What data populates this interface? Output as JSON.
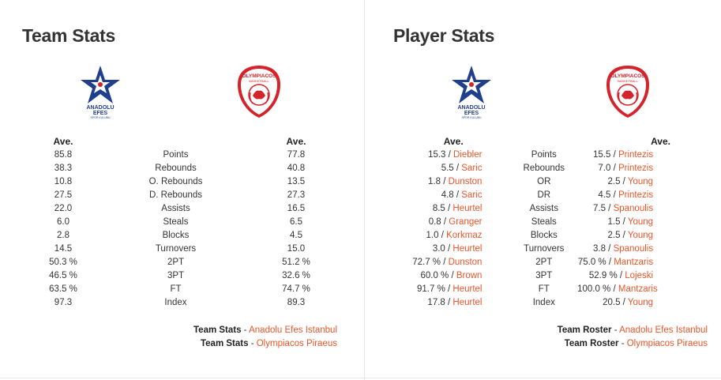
{
  "team_stats": {
    "title": "Team Stats",
    "home_logo": "anadolu-efes-logo",
    "away_logo": "olympiacos-logo",
    "logo_text": {
      "efes_line1": "ANADOLU",
      "efes_line2": "EFES",
      "efes_line3": "SPOR KULUBU",
      "oly_line1": "OLYMPIACOS",
      "oly_line2": "BASKETBALL"
    },
    "col_home": "Ave.",
    "col_away": "Ave.",
    "rows": [
      {
        "home": "85.8",
        "stat": "Points",
        "away": "77.8"
      },
      {
        "home": "38.3",
        "stat": "Rebounds",
        "away": "40.8"
      },
      {
        "home": "10.8",
        "stat": "O. Rebounds",
        "away": "13.5"
      },
      {
        "home": "27.5",
        "stat": "D. Rebounds",
        "away": "27.3"
      },
      {
        "home": "22.0",
        "stat": "Assists",
        "away": "16.5"
      },
      {
        "home": "6.0",
        "stat": "Steals",
        "away": "6.5"
      },
      {
        "home": "2.8",
        "stat": "Blocks",
        "away": "4.5"
      },
      {
        "home": "14.5",
        "stat": "Turnovers",
        "away": "15.0"
      },
      {
        "home": "50.3 %",
        "stat": "2PT",
        "away": "51.2 %"
      },
      {
        "home": "46.5 %",
        "stat": "3PT",
        "away": "32.6 %"
      },
      {
        "home": "63.5 %",
        "stat": "FT",
        "away": "74.7 %"
      },
      {
        "home": "97.3",
        "stat": "Index",
        "away": "89.3"
      }
    ],
    "footer": [
      {
        "label": "Team Stats",
        "sep": " - ",
        "link": "Anadolu Efes Istanbul"
      },
      {
        "label": "Team Stats",
        "sep": " - ",
        "link": "Olympiacos Piraeus"
      }
    ]
  },
  "player_stats": {
    "title": "Player Stats",
    "col_home": "Ave.",
    "col_away": "Ave.",
    "rows": [
      {
        "home_val": "15.3 / ",
        "home_player": "Diebler",
        "stat": "Points",
        "away_val": "15.5 / ",
        "away_player": "Printezis"
      },
      {
        "home_val": "5.5 / ",
        "home_player": "Saric",
        "stat": "Rebounds",
        "away_val": "7.0 / ",
        "away_player": "Printezis"
      },
      {
        "home_val": "1.8 / ",
        "home_player": "Dunston",
        "stat": "OR",
        "away_val": "2.5 / ",
        "away_player": "Young"
      },
      {
        "home_val": "4.8 / ",
        "home_player": "Saric",
        "stat": "DR",
        "away_val": "4.5 / ",
        "away_player": "Printezis"
      },
      {
        "home_val": "8.5 / ",
        "home_player": "Heurtel",
        "stat": "Assists",
        "away_val": "7.5 / ",
        "away_player": "Spanoulis"
      },
      {
        "home_val": "0.8 / ",
        "home_player": "Granger",
        "stat": "Steals",
        "away_val": "1.5 / ",
        "away_player": "Young"
      },
      {
        "home_val": "1.0 / ",
        "home_player": "Korkmaz",
        "stat": "Blocks",
        "away_val": "2.5 / ",
        "away_player": "Young"
      },
      {
        "home_val": "3.0 / ",
        "home_player": "Heurtel",
        "stat": "Turnovers",
        "away_val": "3.8 / ",
        "away_player": "Spanoulis"
      },
      {
        "home_val": "72.7 % / ",
        "home_player": "Dunston",
        "stat": "2PT",
        "away_val": "75.0 % / ",
        "away_player": "Mantzaris"
      },
      {
        "home_val": "60.0 % / ",
        "home_player": "Brown",
        "stat": "3PT",
        "away_val": "52.9 % / ",
        "away_player": "Lojeski"
      },
      {
        "home_val": "91.7 % / ",
        "home_player": "Heurtel",
        "stat": "FT",
        "away_val": "100.0 % / ",
        "away_player": "Mantzaris"
      },
      {
        "home_val": "17.8 / ",
        "home_player": "Heurtel",
        "stat": "Index",
        "away_val": "20.5 / ",
        "away_player": "Young"
      }
    ],
    "footer": [
      {
        "label": "Team Roster",
        "sep": " - ",
        "link": "Anadolu Efes Istanbul"
      },
      {
        "label": "Team Roster",
        "sep": " - ",
        "link": "Olympiacos Piraeus"
      }
    ]
  },
  "colors": {
    "link": "#e8562a",
    "efes_blue": "#1f3f8c",
    "olympiacos_red": "#d4232b"
  }
}
